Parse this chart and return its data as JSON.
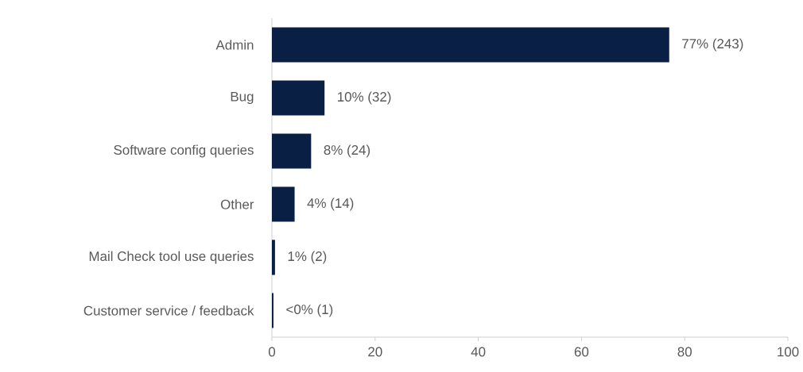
{
  "chart_data": {
    "type": "bar",
    "orientation": "horizontal",
    "categories": [
      "Admin",
      "Bug",
      "Software config queries",
      "Other",
      "Mail Check tool use queries",
      "Customer service / feedback"
    ],
    "values": [
      77,
      10.2,
      7.6,
      4.4,
      0.6,
      0.3
    ],
    "value_labels": [
      "77% (243)",
      "10% (32)",
      "8% (24)",
      "4% (14)",
      "1% (2)",
      "<0% (1)"
    ],
    "color": "#0a1f44",
    "xlim": [
      0,
      100
    ],
    "xticks": [
      0,
      20,
      40,
      60,
      80,
      100
    ]
  }
}
